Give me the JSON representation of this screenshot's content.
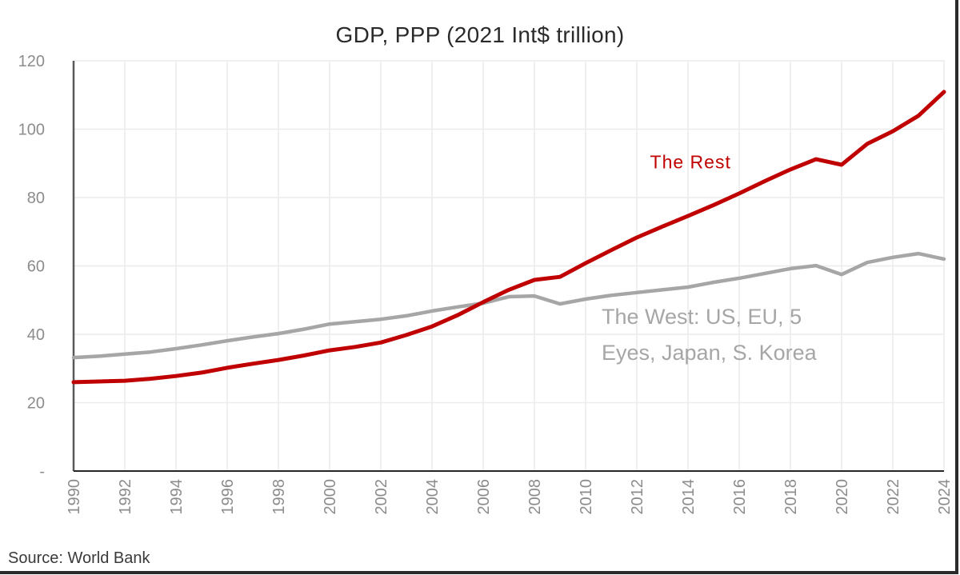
{
  "chart_data": {
    "type": "line",
    "title": "GDP, PPP (2021 Int$ trillion)",
    "xlabel": "",
    "ylabel": "",
    "source": "Source: World Bank",
    "x": [
      1990,
      1991,
      1992,
      1993,
      1994,
      1995,
      1996,
      1997,
      1998,
      1999,
      2000,
      2001,
      2002,
      2003,
      2004,
      2005,
      2006,
      2007,
      2008,
      2009,
      2010,
      2011,
      2012,
      2013,
      2014,
      2015,
      2016,
      2017,
      2018,
      2019,
      2020,
      2021,
      2022,
      2023,
      2024
    ],
    "xlim": [
      1990,
      2024
    ],
    "ylim": [
      0,
      120
    ],
    "yticks": [
      0,
      20,
      40,
      60,
      80,
      100,
      120
    ],
    "ytick_labels": [
      "-",
      "20",
      "40",
      "60",
      "80",
      "100",
      "120"
    ],
    "xticks": [
      1990,
      1992,
      1994,
      1996,
      1998,
      2000,
      2002,
      2004,
      2006,
      2008,
      2010,
      2012,
      2014,
      2016,
      2018,
      2020,
      2022,
      2024
    ],
    "xtick_labels": [
      "1990",
      "1992",
      "1994",
      "1996",
      "1998",
      "2000",
      "2002",
      "2004",
      "2006",
      "2008",
      "2010",
      "2012",
      "2014",
      "2016",
      "2018",
      "2020",
      "2022",
      "2024"
    ],
    "grid": true,
    "legend": "none",
    "series": [
      {
        "name": "The Rest",
        "color": "#c00000",
        "values": [
          26.0,
          26.2,
          26.4,
          27.0,
          27.8,
          28.8,
          30.2,
          31.4,
          32.5,
          33.8,
          35.3,
          36.3,
          37.6,
          39.8,
          42.3,
          45.6,
          49.4,
          53.0,
          55.9,
          56.8,
          60.8,
          64.6,
          68.3,
          71.5,
          74.6,
          77.8,
          81.2,
          84.8,
          88.2,
          91.2,
          89.6,
          95.7,
          99.4,
          103.9,
          110.9
        ]
      },
      {
        "name": "The West: US, EU, 5 Eyes, Japan, S. Korea",
        "color": "#a6a6a6",
        "values": [
          33.2,
          33.6,
          34.2,
          34.8,
          35.8,
          36.9,
          38.1,
          39.2,
          40.2,
          41.5,
          43.0,
          43.7,
          44.4,
          45.4,
          46.8,
          48.0,
          49.1,
          51.0,
          51.2,
          48.9,
          50.3,
          51.4,
          52.2,
          53.0,
          53.8,
          55.2,
          56.4,
          57.8,
          59.2,
          60.1,
          57.5,
          61.0,
          62.5,
          63.6,
          62.0
        ]
      }
    ],
    "annotations": [
      {
        "text": "The Rest",
        "color": "#c00000",
        "anchor_year": 2014.1,
        "anchor_value": 88.5
      },
      {
        "text_lines": [
          "The West: US, EU, 5",
          "Eyes, Japan, S. Korea"
        ],
        "color": "#a6a6a6",
        "anchor_year": 2010.5,
        "anchor_value": 43
      }
    ]
  }
}
